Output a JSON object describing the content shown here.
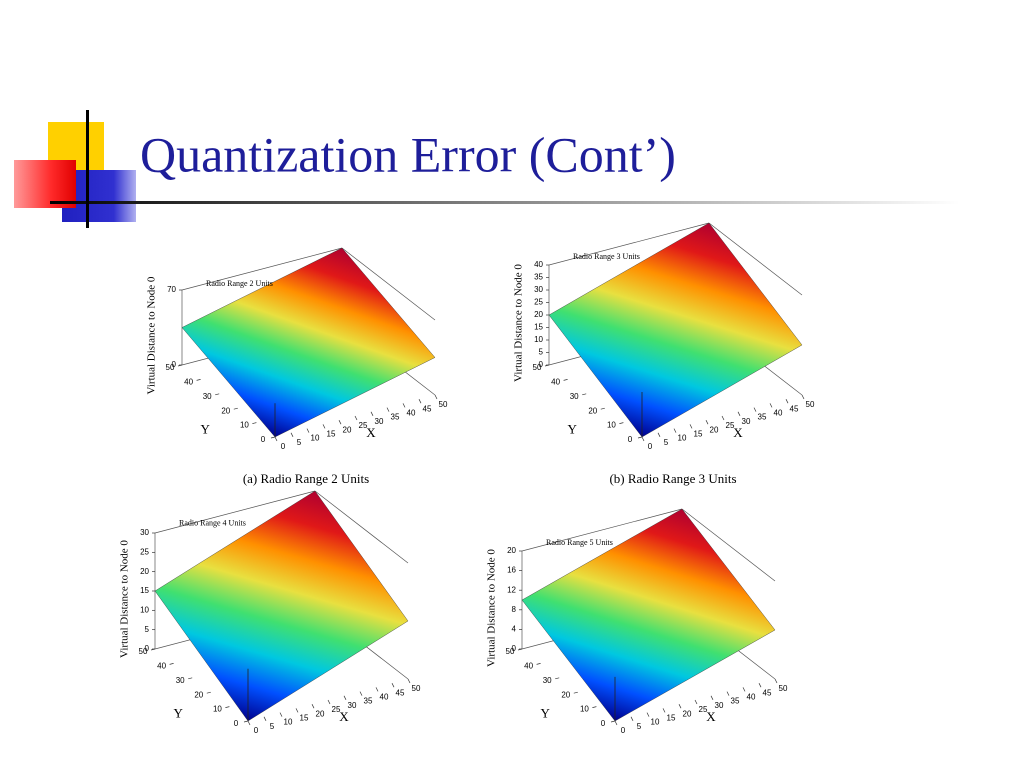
{
  "title": "Quantization Error (Cont’)",
  "figures": [
    {
      "plot_title": "Radio Range 2 Units",
      "caption": "(a) Radio Range 2 Units",
      "z_label": "Virtual Distance to Node 0",
      "x_label": "X",
      "y_label": "Y",
      "zticks": [
        0,
        70
      ],
      "xticks": [
        0,
        5,
        10,
        15,
        20,
        25,
        30,
        35,
        40,
        45,
        50
      ],
      "yticks": [
        0,
        10,
        20,
        30,
        40,
        50
      ]
    },
    {
      "plot_title": "Radio Range 3 Units",
      "caption": "(b) Radio Range 3 Units",
      "z_label": "Virtual Distance to Node 0",
      "x_label": "X",
      "y_label": "Y",
      "zticks": [
        0,
        5,
        10,
        15,
        20,
        25,
        30,
        35,
        40
      ],
      "xticks": [
        0,
        5,
        10,
        15,
        20,
        25,
        30,
        35,
        40,
        45,
        50
      ],
      "yticks": [
        0,
        10,
        20,
        30,
        40,
        50
      ]
    },
    {
      "plot_title": "Radio Range 4 Units",
      "z_label": "Virtual Distance to Node 0",
      "x_label": "X",
      "y_label": "Y",
      "zticks": [
        0,
        5,
        10,
        15,
        20,
        25,
        30
      ],
      "xticks": [
        0,
        5,
        10,
        15,
        20,
        25,
        30,
        35,
        40,
        45,
        50
      ],
      "yticks": [
        0,
        10,
        20,
        30,
        40,
        50
      ]
    },
    {
      "plot_title": "Radio Range 5 Units",
      "z_label": "Virtual Distance to Node 0",
      "x_label": "X",
      "y_label": "Y",
      "zticks": [
        0,
        4,
        8,
        12,
        16,
        20
      ],
      "xticks": [
        0,
        5,
        10,
        15,
        20,
        25,
        30,
        35,
        40,
        45,
        50
      ],
      "yticks": [
        0,
        10,
        20,
        30,
        40,
        50
      ]
    }
  ]
}
